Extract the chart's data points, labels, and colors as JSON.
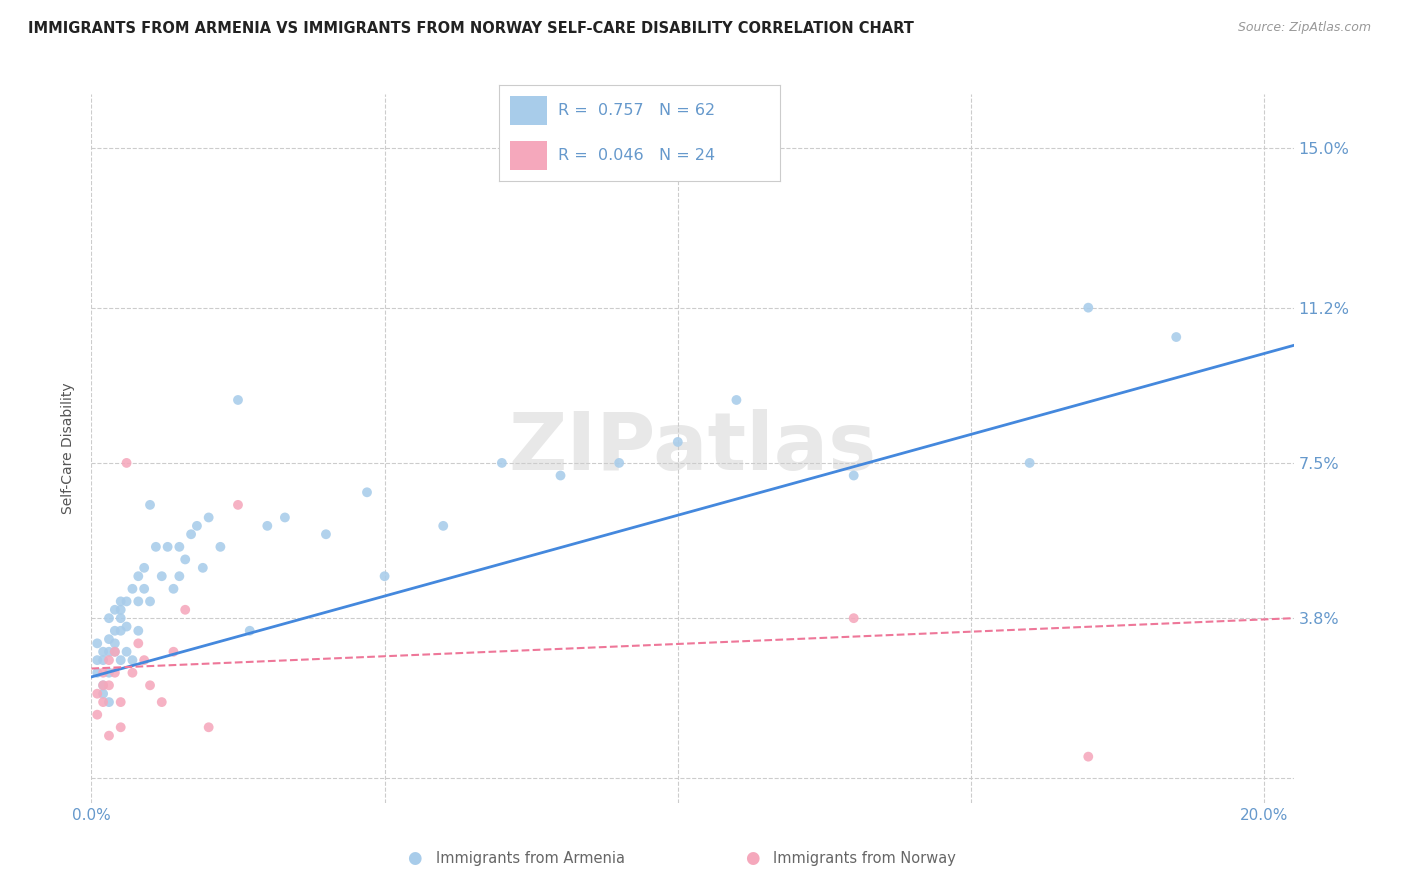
{
  "title": "IMMIGRANTS FROM ARMENIA VS IMMIGRANTS FROM NORWAY SELF-CARE DISABILITY CORRELATION CHART",
  "source": "Source: ZipAtlas.com",
  "ylabel": "Self-Care Disability",
  "xlim": [
    0.0,
    0.205
  ],
  "ylim": [
    -0.006,
    0.163
  ],
  "ytick_positions": [
    0.0,
    0.038,
    0.075,
    0.112,
    0.15
  ],
  "ytick_labels": [
    "",
    "3.8%",
    "7.5%",
    "11.2%",
    "15.0%"
  ],
  "xtick_positions": [
    0.0,
    0.05,
    0.1,
    0.15,
    0.2
  ],
  "grid_color": "#cccccc",
  "background_color": "#ffffff",
  "watermark": "ZIPatlas",
  "legend_R1": "R =  0.757",
  "legend_N1": "N = 62",
  "legend_R2": "R =  0.046",
  "legend_N2": "N = 24",
  "legend_label1": "Immigrants from Armenia",
  "legend_label2": "Immigrants from Norway",
  "color_armenia": "#A8CCEA",
  "color_norway": "#F5A8BC",
  "trendline_color_armenia": "#4488DD",
  "trendline_color_norway": "#EE7799",
  "tick_label_color": "#6699CC",
  "title_color": "#222222",
  "source_color": "#999999",
  "ylabel_color": "#555555",
  "armenia_x": [
    0.001,
    0.001,
    0.001,
    0.002,
    0.002,
    0.002,
    0.002,
    0.003,
    0.003,
    0.003,
    0.003,
    0.003,
    0.004,
    0.004,
    0.004,
    0.004,
    0.005,
    0.005,
    0.005,
    0.005,
    0.005,
    0.006,
    0.006,
    0.006,
    0.007,
    0.007,
    0.008,
    0.008,
    0.008,
    0.009,
    0.009,
    0.01,
    0.01,
    0.011,
    0.012,
    0.013,
    0.014,
    0.015,
    0.015,
    0.016,
    0.017,
    0.018,
    0.019,
    0.02,
    0.022,
    0.025,
    0.027,
    0.03,
    0.033,
    0.04,
    0.047,
    0.05,
    0.06,
    0.07,
    0.08,
    0.09,
    0.1,
    0.11,
    0.13,
    0.16,
    0.17,
    0.185
  ],
  "armenia_y": [
    0.028,
    0.032,
    0.025,
    0.02,
    0.022,
    0.03,
    0.028,
    0.018,
    0.03,
    0.033,
    0.038,
    0.025,
    0.03,
    0.032,
    0.035,
    0.04,
    0.028,
    0.035,
    0.04,
    0.038,
    0.042,
    0.03,
    0.036,
    0.042,
    0.045,
    0.028,
    0.035,
    0.048,
    0.042,
    0.045,
    0.05,
    0.042,
    0.065,
    0.055,
    0.048,
    0.055,
    0.045,
    0.055,
    0.048,
    0.052,
    0.058,
    0.06,
    0.05,
    0.062,
    0.055,
    0.09,
    0.035,
    0.06,
    0.062,
    0.058,
    0.068,
    0.048,
    0.06,
    0.075,
    0.072,
    0.075,
    0.08,
    0.09,
    0.072,
    0.075,
    0.112,
    0.105
  ],
  "norway_x": [
    0.001,
    0.001,
    0.002,
    0.002,
    0.002,
    0.003,
    0.003,
    0.003,
    0.004,
    0.004,
    0.005,
    0.005,
    0.006,
    0.007,
    0.008,
    0.009,
    0.01,
    0.012,
    0.014,
    0.016,
    0.02,
    0.025,
    0.13,
    0.17
  ],
  "norway_y": [
    0.02,
    0.015,
    0.018,
    0.025,
    0.022,
    0.028,
    0.022,
    0.01,
    0.03,
    0.025,
    0.012,
    0.018,
    0.075,
    0.025,
    0.032,
    0.028,
    0.022,
    0.018,
    0.03,
    0.04,
    0.012,
    0.065,
    0.038,
    0.005
  ],
  "trendline_armenia_x0": 0.0,
  "trendline_armenia_x1": 0.205,
  "trendline_armenia_y0": 0.024,
  "trendline_armenia_y1": 0.103,
  "trendline_norway_x0": 0.0,
  "trendline_norway_x1": 0.205,
  "trendline_norway_y0": 0.026,
  "trendline_norway_y1": 0.038
}
